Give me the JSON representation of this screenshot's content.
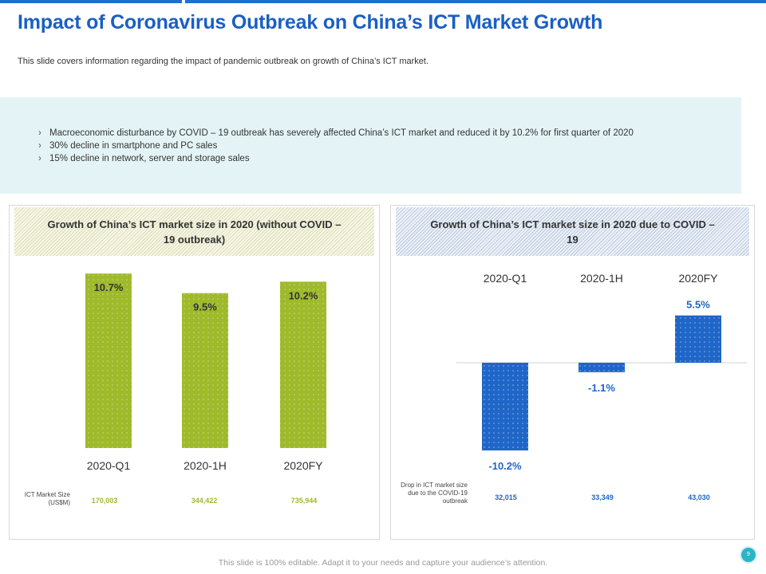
{
  "title": "Impact of Coronavirus Outbreak on China’s ICT Market Growth",
  "subtitle": "This slide covers information regarding the impact of pandemic outbreak on growth of China’s ICT market.",
  "bullets": [
    "Macroeconomic disturbance by COVID – 19 outbreak has severely affected China’s ICT market and reduced it by 10.2% for first quarter of 2020",
    "30% decline in smartphone and PC sales",
    "15% decline in network, server and storage sales"
  ],
  "left_panel": {
    "heading": "Growth of China’s ICT market size in 2020 (without COVID – 19 outbreak)",
    "row_label": "ICT Market Size (US$M)",
    "row_values": [
      "170,003",
      "344,422",
      "735,944"
    ]
  },
  "right_panel": {
    "heading": "Growth of China’s ICT market size in 2020 due to COVID – 19",
    "row_label": "Drop in ICT market size due to the COVID-19 outbreak",
    "row_values": [
      "32,015",
      "33,349",
      "43,030"
    ]
  },
  "chart_data": [
    {
      "type": "bar",
      "title": "Growth of China’s ICT market size in 2020 (without COVID – 19 outbreak)",
      "categories": [
        "2020-Q1",
        "2020-1H",
        "2020FY"
      ],
      "values": [
        10.7,
        9.5,
        10.2
      ],
      "labels": [
        "10.7%",
        "9.5%",
        "10.2%"
      ],
      "ylim": [
        0,
        11
      ],
      "color": "#9fba2a"
    },
    {
      "type": "bar",
      "title": "Growth of China’s ICT market size in 2020 due to COVID – 19",
      "categories": [
        "2020-Q1",
        "2020-1H",
        "2020FY"
      ],
      "values": [
        -10.2,
        -1.1,
        5.5
      ],
      "labels": [
        "-10.2%",
        "-1.1%",
        "5.5%"
      ],
      "ylim": [
        -11,
        6
      ],
      "color": "#1f66c8"
    }
  ],
  "footer": "This slide is 100% editable. Adapt it to your needs and capture your audience’s attention.",
  "page_number": "9",
  "colors": {
    "title": "#1a5fc4",
    "green": "#9fba2a",
    "blue": "#1f66c8",
    "info_bg": "#e4f4f6"
  }
}
